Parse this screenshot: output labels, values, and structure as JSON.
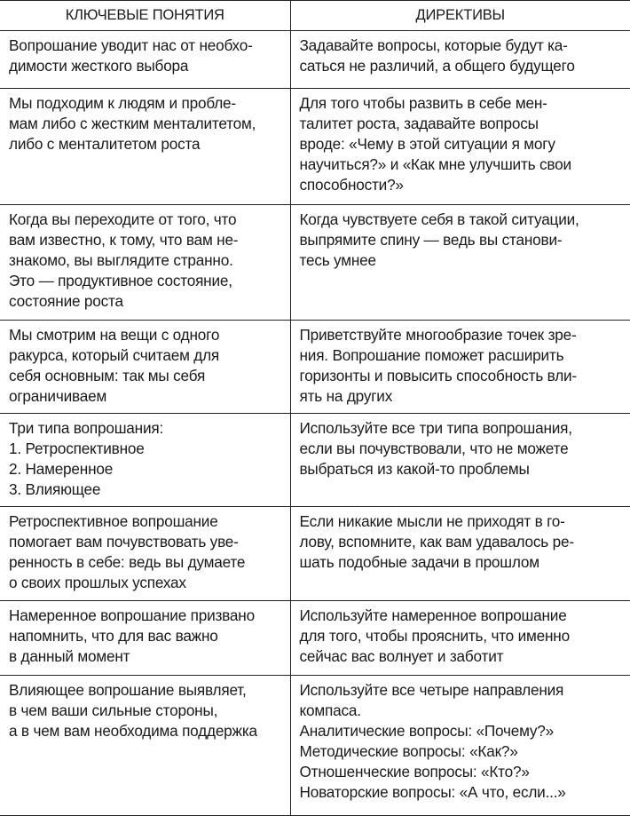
{
  "headers": [
    "КЛЮЧЕВЫЕ ПОНЯТИЯ",
    "ДИРЕКТИВЫ"
  ],
  "rows": [
    {
      "left": [
        "Вопрошание уводит нас от необхо-",
        "димости жесткого выбора"
      ],
      "right": [
        "Задавайте вопросы, которые будут ка-",
        "саться не различий, а общего будущего"
      ]
    },
    {
      "left": [
        "Мы подходим к людям и пробле-",
        "мам либо с жестким менталитетом,",
        "либо с менталитетом роста"
      ],
      "right": [
        "Для того чтобы развить в себе мен-",
        "талитет роста, задавайте вопросы",
        "вроде: «Чему в этой ситуации я могу",
        "научиться?» и «Как мне улучшить свои",
        "способности?»"
      ]
    },
    {
      "left": [
        "Когда вы переходите от того, что",
        "вам известно, к тому, что вам не-",
        "знакомо, вы выглядите странно.",
        "Это — продуктивное состояние,",
        "состояние роста"
      ],
      "right": [
        "Когда чувствуете себя в такой ситуации,",
        "выпрямите спину — ведь вы станови-",
        "тесь умнее"
      ]
    },
    {
      "left": [
        "Мы смотрим на вещи с одного",
        "ракурса, который считаем для",
        "себя основным: так мы себя",
        "ограничиваем"
      ],
      "right": [
        "Приветствуйте многообразие точек зре-",
        "ния. Вопрошание поможет расширить",
        "горизонты и повысить способность вли-",
        "ять на других"
      ]
    },
    {
      "left": [
        "Три типа вопрошания:",
        "1. Ретроспективное",
        "2. Намеренное",
        "3. Влияющее"
      ],
      "right": [
        "Используйте все три типа вопрошания,",
        "если вы почувствовали, что не можете",
        "выбраться из какой-то проблемы"
      ]
    },
    {
      "left": [
        "Ретроспективное вопрошание",
        "помогает вам почувствовать уве-",
        "ренность в себе: ведь вы думаете",
        "о своих прошлых успехах"
      ],
      "right": [
        "Если никакие мысли не приходят в го-",
        "лову, вспомните, как вам удавалось ре-",
        "шать подобные задачи в прошлом"
      ]
    },
    {
      "left": [
        "Намеренное вопрошание призвано",
        "напомнить, что для вас важно",
        "в данный момент"
      ],
      "right": [
        "Используйте намеренное вопрошание",
        "для того, чтобы прояснить, что именно",
        "сейчас вас волнует и заботит"
      ]
    },
    {
      "left": [
        "Влияющее вопрошание выявляет,",
        "в чем ваши сильные стороны,",
        "а в чем вам необходима поддержка"
      ],
      "right": [
        "Используйте все четыре направления",
        "компаса.",
        "Аналитические вопросы: «Почему?»",
        "Методические вопросы: «Как?»",
        "Отношенческие вопросы: «Кто?»",
        "Новаторские вопросы: «А что, если...»"
      ]
    }
  ]
}
